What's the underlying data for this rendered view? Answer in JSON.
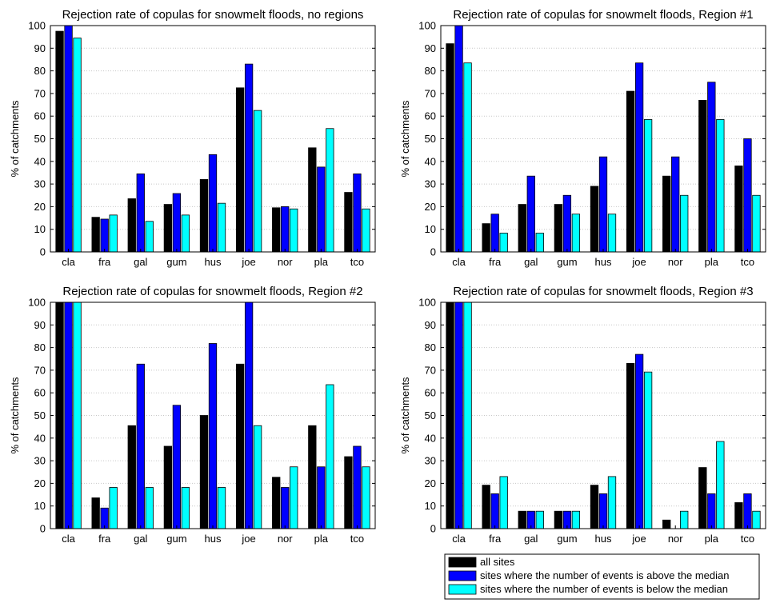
{
  "chart_data": [
    {
      "type": "bar",
      "title": "Rejection rate of copulas for snowmelt floods, no regions",
      "ylabel": "% of catchments",
      "xlabel": "",
      "ylim": [
        0,
        100
      ],
      "yticks": [
        0,
        10,
        20,
        30,
        40,
        50,
        60,
        70,
        80,
        90,
        100
      ],
      "categories": [
        "cla",
        "fra",
        "gal",
        "gum",
        "hus",
        "joe",
        "nor",
        "pla",
        "tco"
      ],
      "series": [
        {
          "name": "all sites",
          "color": "#000000",
          "values": [
            97.5,
            15.3,
            23.5,
            21,
            32,
            72.5,
            19.5,
            46,
            26.3
          ]
        },
        {
          "name": "sites where the number of events is above the median",
          "color": "#0000ff",
          "values": [
            100,
            14.5,
            34.5,
            25.8,
            43,
            83,
            20,
            37.5,
            34.5
          ]
        },
        {
          "name": "sites where the number of events is below the median",
          "color": "#00ffff",
          "values": [
            94.5,
            16.3,
            13.5,
            16.3,
            21.5,
            62.5,
            19,
            54.5,
            19
          ]
        }
      ]
    },
    {
      "type": "bar",
      "title": "Rejection rate of copulas for snowmelt floods, Region #1",
      "ylabel": "% of catchments",
      "xlabel": "",
      "ylim": [
        0,
        100
      ],
      "yticks": [
        0,
        10,
        20,
        30,
        40,
        50,
        60,
        70,
        80,
        90,
        100
      ],
      "categories": [
        "cla",
        "fra",
        "gal",
        "gum",
        "hus",
        "joe",
        "nor",
        "pla",
        "tco"
      ],
      "series": [
        {
          "name": "all sites",
          "color": "#000000",
          "values": [
            92,
            12.5,
            21,
            21,
            29,
            71,
            33.5,
            67,
            38
          ]
        },
        {
          "name": "sites where the number of events is above the median",
          "color": "#0000ff",
          "values": [
            100,
            16.7,
            33.5,
            25,
            42,
            83.5,
            42,
            75,
            50
          ]
        },
        {
          "name": "sites where the number of events is below the median",
          "color": "#00ffff",
          "values": [
            83.5,
            8.3,
            8.3,
            16.7,
            16.7,
            58.5,
            25,
            58.5,
            25
          ]
        }
      ]
    },
    {
      "type": "bar",
      "title": "Rejection rate of copulas for snowmelt floods, Region #2",
      "ylabel": "% of catchments",
      "xlabel": "",
      "ylim": [
        0,
        100
      ],
      "yticks": [
        0,
        10,
        20,
        30,
        40,
        50,
        60,
        70,
        80,
        90,
        100
      ],
      "categories": [
        "cla",
        "fra",
        "gal",
        "gum",
        "hus",
        "joe",
        "nor",
        "pla",
        "tco"
      ],
      "series": [
        {
          "name": "all sites",
          "color": "#000000",
          "values": [
            100,
            13.6,
            45.5,
            36.4,
            50,
            72.7,
            22.7,
            45.5,
            31.8
          ]
        },
        {
          "name": "sites where the number of events is above the median",
          "color": "#0000ff",
          "values": [
            100,
            9.1,
            72.7,
            54.5,
            81.8,
            100,
            18.2,
            27.3,
            36.4
          ]
        },
        {
          "name": "sites where the number of events is below the median",
          "color": "#00ffff",
          "values": [
            100,
            18.2,
            18.2,
            18.2,
            18.2,
            45.5,
            27.3,
            63.6,
            27.3
          ]
        }
      ]
    },
    {
      "type": "bar",
      "title": "Rejection rate of copulas for snowmelt floods, Region #3",
      "ylabel": "% of catchments",
      "xlabel": "",
      "ylim": [
        0,
        100
      ],
      "yticks": [
        0,
        10,
        20,
        30,
        40,
        50,
        60,
        70,
        80,
        90,
        100
      ],
      "categories": [
        "cla",
        "fra",
        "gal",
        "gum",
        "hus",
        "joe",
        "nor",
        "pla",
        "tco"
      ],
      "series": [
        {
          "name": "all sites",
          "color": "#000000",
          "values": [
            100,
            19.2,
            7.7,
            7.7,
            19.2,
            73,
            3.8,
            27,
            11.5
          ]
        },
        {
          "name": "sites where the number of events is above the median",
          "color": "#0000ff",
          "values": [
            100,
            15.4,
            7.7,
            7.7,
            15.4,
            77,
            0,
            15.4,
            15.4
          ]
        },
        {
          "name": "sites where the number of events is below the median",
          "color": "#00ffff",
          "values": [
            100,
            23,
            7.7,
            7.7,
            23,
            69.2,
            7.7,
            38.5,
            7.7
          ]
        }
      ]
    }
  ],
  "legend": {
    "placement": "bottom-right",
    "items": [
      {
        "label": "all sites",
        "color": "#000000"
      },
      {
        "label": "sites where the number of events is above the median",
        "color": "#0000ff"
      },
      {
        "label": "sites where the number of events is below the median",
        "color": "#00ffff"
      }
    ]
  }
}
